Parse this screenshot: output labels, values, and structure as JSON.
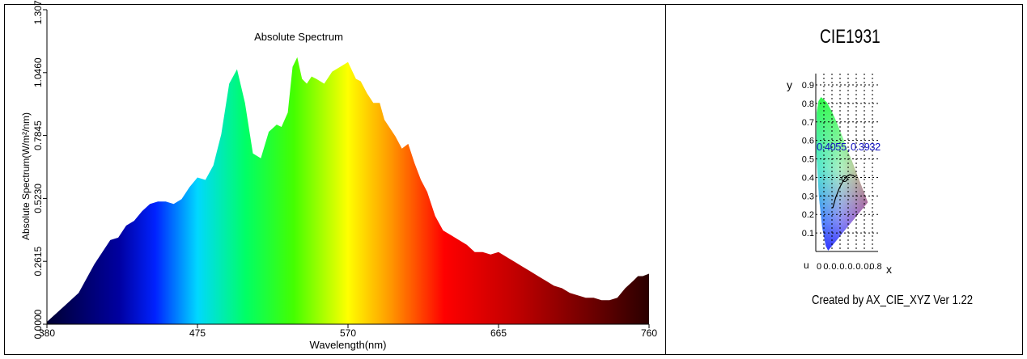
{
  "chart_data": [
    {
      "type": "area",
      "title": "Absolute Spectrum",
      "xlabel": "Wavelength(nm)",
      "ylabel": "Absolute Spectrum(W/m²/nm)",
      "xlim": [
        380,
        760
      ],
      "ylim": [
        0,
        1.3075
      ],
      "xticks": [
        380,
        475,
        570,
        665,
        760
      ],
      "xtick_labels": [
        "380",
        "475",
        "570",
        "665",
        "760"
      ],
      "yticks": [
        0,
        0.2615,
        0.523,
        0.7845,
        1.046,
        1.3075
      ],
      "ytick_labels": [
        "0.0000",
        "0.2615",
        "0.5230",
        "0.7845",
        "1.0460",
        "1.3075"
      ],
      "grid": false,
      "x": [
        380,
        385,
        390,
        395,
        400,
        405,
        410,
        415,
        420,
        425,
        430,
        435,
        440,
        445,
        450,
        455,
        460,
        465,
        470,
        475,
        480,
        485,
        490,
        495,
        500,
        505,
        510,
        515,
        520,
        525,
        528,
        532,
        535,
        538,
        541,
        544,
        547,
        550,
        555,
        560,
        565,
        570,
        575,
        578,
        582,
        586,
        590,
        593,
        596,
        600,
        604,
        608,
        612,
        616,
        620,
        625,
        630,
        635,
        640,
        645,
        650,
        655,
        660,
        665,
        670,
        675,
        680,
        685,
        690,
        695,
        700,
        705,
        710,
        715,
        720,
        725,
        730,
        735,
        740,
        745,
        750,
        753,
        756,
        760
      ],
      "values": [
        0.01,
        0.04,
        0.07,
        0.1,
        0.13,
        0.19,
        0.25,
        0.3,
        0.35,
        0.36,
        0.41,
        0.43,
        0.47,
        0.5,
        0.51,
        0.51,
        0.5,
        0.52,
        0.57,
        0.61,
        0.6,
        0.66,
        0.79,
        1.0,
        1.06,
        0.92,
        0.71,
        0.69,
        0.8,
        0.83,
        0.82,
        0.88,
        1.07,
        1.11,
        1.02,
        1.0,
        1.03,
        1.02,
        1.0,
        1.05,
        1.07,
        1.09,
        1.02,
        1.01,
        0.96,
        0.92,
        0.92,
        0.85,
        0.82,
        0.78,
        0.73,
        0.75,
        0.67,
        0.6,
        0.55,
        0.45,
        0.39,
        0.37,
        0.35,
        0.33,
        0.3,
        0.3,
        0.29,
        0.3,
        0.28,
        0.26,
        0.24,
        0.22,
        0.2,
        0.18,
        0.16,
        0.15,
        0.13,
        0.12,
        0.11,
        0.11,
        0.1,
        0.1,
        0.11,
        0.15,
        0.18,
        0.2,
        0.2,
        0.21
      ]
    },
    {
      "type": "scatter",
      "title": "CIE1931",
      "xlabel": "x",
      "ylabel": "y",
      "xlim": [
        0,
        0.8
      ],
      "ylim": [
        0,
        0.9
      ],
      "xtick_labels": [
        "0",
        "0.",
        "0.",
        "0.",
        "0.",
        "0.",
        "0.",
        "0.8"
      ],
      "ytick_labels": [
        "0.1",
        "0.2",
        "0.3",
        "0.4",
        "0.5",
        "0.6",
        "0.7",
        "0.8",
        "0.9"
      ],
      "origin_label": "u",
      "point": {
        "x": 0.4055,
        "y": 0.3932
      },
      "point_labels": [
        "0.4055",
        "0.3932"
      ],
      "point_separator": ",",
      "footer": "Created by AX_CIE_XYZ Ver 1.22"
    }
  ]
}
